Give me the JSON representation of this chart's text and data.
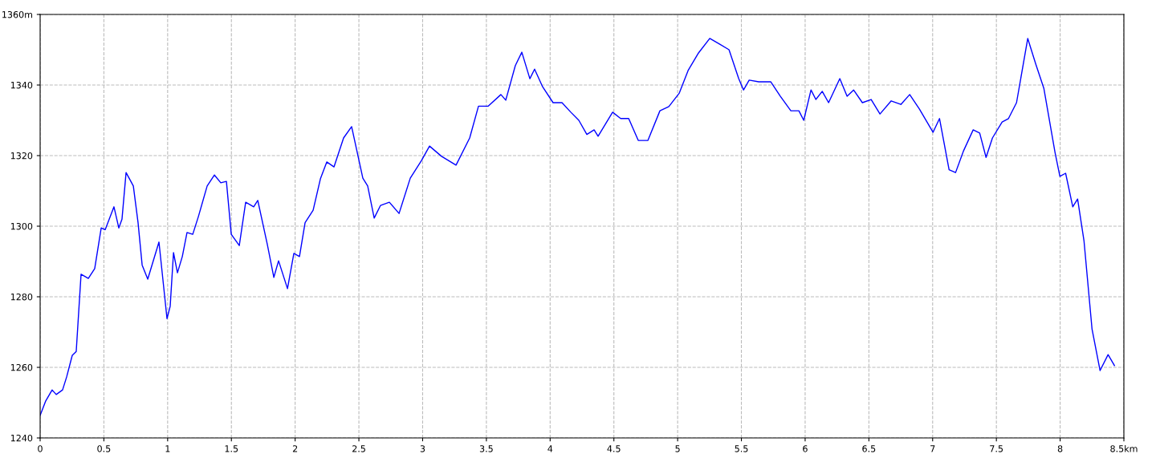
{
  "chart_data": {
    "type": "line",
    "grid": true,
    "line_style": "solid",
    "marker": "none",
    "xlim": [
      0,
      8.5
    ],
    "ylim": [
      1240,
      1360
    ],
    "xticks": [
      0,
      0.5,
      1,
      1.5,
      2,
      2.5,
      3,
      3.5,
      4,
      4.5,
      5,
      5.5,
      6,
      6.5,
      7,
      7.5,
      8,
      {
        "value": 8.5,
        "label": "8.5km"
      }
    ],
    "yticks": [
      1240,
      1260,
      1280,
      1300,
      1320,
      1340,
      {
        "value": 1360,
        "label": "1360m"
      }
    ],
    "x": [
      0,
      0.044,
      0.094,
      0.126,
      0.176,
      0.208,
      0.252,
      0.283,
      0.321,
      0.378,
      0.428,
      0.479,
      0.51,
      0.579,
      0.617,
      0.642,
      0.674,
      0.731,
      0.768,
      0.8,
      0.844,
      0.932,
      0.995,
      1.02,
      1.046,
      1.077,
      1.115,
      1.152,
      1.197,
      1.241,
      1.31,
      1.367,
      1.417,
      1.461,
      1.499,
      1.562,
      1.612,
      1.675,
      1.707,
      1.782,
      1.833,
      1.87,
      1.94,
      1.99,
      2.034,
      2.078,
      2.141,
      2.198,
      2.248,
      2.305,
      2.38,
      2.443,
      2.531,
      2.569,
      2.62,
      2.67,
      2.739,
      2.815,
      2.903,
      2.991,
      3.054,
      3.148,
      3.262,
      3.369,
      3.438,
      3.513,
      3.614,
      3.652,
      3.727,
      3.778,
      3.841,
      3.878,
      3.941,
      4.023,
      4.093,
      4.162,
      4.225,
      4.288,
      4.345,
      4.376,
      4.49,
      4.553,
      4.616,
      4.691,
      4.767,
      4.861,
      4.931,
      5.013,
      5.082,
      5.164,
      5.252,
      5.328,
      5.403,
      5.479,
      5.517,
      5.561,
      5.636,
      5.731,
      5.806,
      5.888,
      5.951,
      5.989,
      6.046,
      6.084,
      6.134,
      6.184,
      6.272,
      6.329,
      6.38,
      6.449,
      6.518,
      6.587,
      6.675,
      6.751,
      6.82,
      6.896,
      7.003,
      7.054,
      7.129,
      7.18,
      7.243,
      7.318,
      7.369,
      7.419,
      7.469,
      7.545,
      7.595,
      7.658,
      7.746,
      7.809,
      7.872,
      7.96,
      7.998,
      8.043,
      8.099,
      8.137,
      8.187,
      8.25,
      8.313,
      8.376,
      8.426
    ],
    "series": [
      {
        "color": "#0000ff",
        "values": [
          1246.4,
          1250.5,
          1253.6,
          1252.3,
          1253.6,
          1257.3,
          1263.4,
          1264.5,
          1286.4,
          1285.2,
          1288,
          1299.5,
          1299,
          1305.5,
          1299.5,
          1302,
          1315.2,
          1311.4,
          1301,
          1289,
          1285,
          1295.5,
          1273.8,
          1277.3,
          1292.5,
          1286.8,
          1291.4,
          1298.2,
          1297.7,
          1302.7,
          1311.4,
          1314.5,
          1312.3,
          1312.7,
          1297.7,
          1294.5,
          1306.8,
          1305.5,
          1307.3,
          1294.8,
          1285.5,
          1290.2,
          1282.3,
          1292.3,
          1291.4,
          1301,
          1304.5,
          1313.4,
          1318.2,
          1316.8,
          1325,
          1328.2,
          1313.6,
          1311.4,
          1302.3,
          1305.9,
          1306.8,
          1303.6,
          1313.6,
          1318.6,
          1322.7,
          1319.8,
          1317.3,
          1325,
          1334,
          1334,
          1337.3,
          1335.7,
          1345.5,
          1349.3,
          1341.8,
          1344.5,
          1339.5,
          1335,
          1335,
          1332.3,
          1330,
          1326,
          1327.3,
          1325.5,
          1332.3,
          1330.5,
          1330.5,
          1324.3,
          1324.3,
          1332.7,
          1333.9,
          1337.7,
          1344.1,
          1349.1,
          1353.2,
          1351.6,
          1350,
          1341.8,
          1338.6,
          1341.4,
          1340.9,
          1340.9,
          1336.8,
          1332.7,
          1332.7,
          1330,
          1338.6,
          1335.9,
          1338.2,
          1335,
          1341.8,
          1336.8,
          1338.6,
          1335,
          1335.9,
          1331.8,
          1335.5,
          1334.5,
          1337.3,
          1333.2,
          1326.6,
          1330.5,
          1316,
          1315.2,
          1321.4,
          1327.3,
          1326.4,
          1319.5,
          1325,
          1329.5,
          1330.5,
          1335,
          1353.2,
          1345.9,
          1339.1,
          1320.9,
          1314.1,
          1315,
          1305.5,
          1307.7,
          1295.9,
          1270.9,
          1259.1,
          1263.6,
          1260.5
        ]
      }
    ]
  }
}
